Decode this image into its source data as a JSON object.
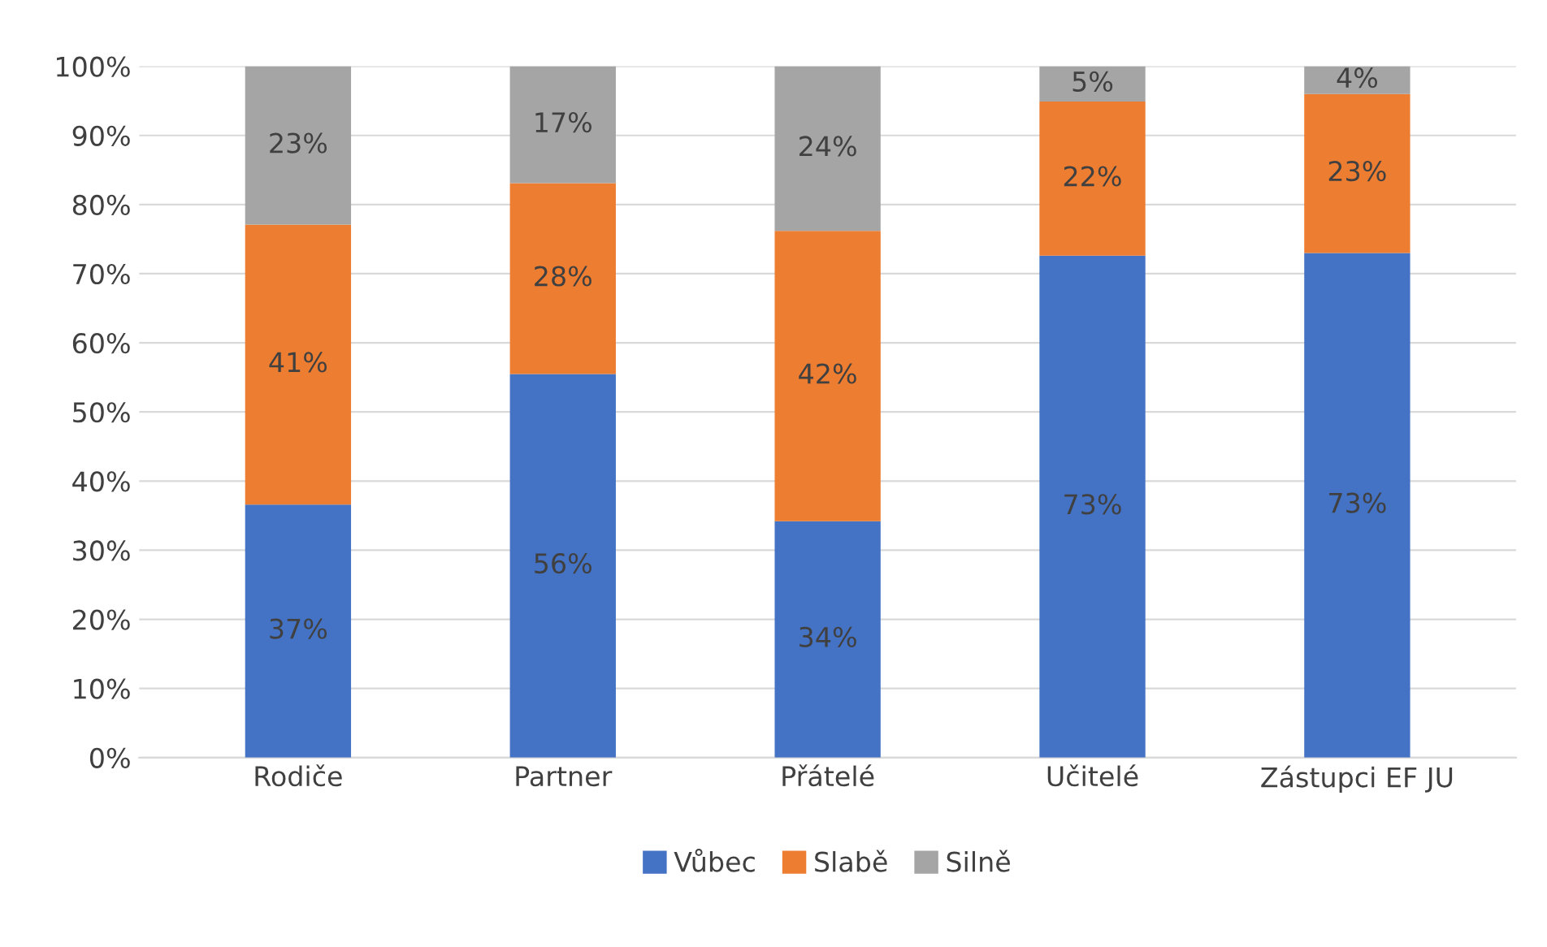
{
  "chart_data": {
    "type": "bar",
    "stacked": true,
    "categories": [
      "Rodiče",
      "Partner",
      "Přátelé",
      "Učitelé",
      "Zástupci EF JU"
    ],
    "series": [
      {
        "name": "Vůbec",
        "color": "#4472c4",
        "values": [
          36.6,
          55.5,
          34.2,
          72.6,
          73.0
        ],
        "value_labels": [
          "37%",
          "56%",
          "34%",
          "73%",
          "73%"
        ]
      },
      {
        "name": "Slabě",
        "color": "#ed7d31",
        "values": [
          40.5,
          27.6,
          42.0,
          22.3,
          23.0
        ],
        "value_labels": [
          "41%",
          "28%",
          "42%",
          "22%",
          "23%"
        ]
      },
      {
        "name": "Silně",
        "color": "#a5a5a5",
        "values": [
          22.9,
          16.9,
          23.8,
          5.1,
          4.0
        ],
        "value_labels": [
          "23%",
          "17%",
          "24%",
          "5%",
          "4%"
        ]
      }
    ],
    "ylim": [
      0,
      100
    ],
    "yticks": [
      {
        "value": 0,
        "label": "0%"
      },
      {
        "value": 10,
        "label": "10%"
      },
      {
        "value": 20,
        "label": "20%"
      },
      {
        "value": 30,
        "label": "30%"
      },
      {
        "value": 40,
        "label": "40%"
      },
      {
        "value": 50,
        "label": "50%"
      },
      {
        "value": 60,
        "label": "60%"
      },
      {
        "value": 70,
        "label": "70%"
      },
      {
        "value": 80,
        "label": "80%"
      },
      {
        "value": 90,
        "label": "90%"
      },
      {
        "value": 100,
        "label": "100%"
      }
    ],
    "grid": "y",
    "legend": "bottom"
  }
}
